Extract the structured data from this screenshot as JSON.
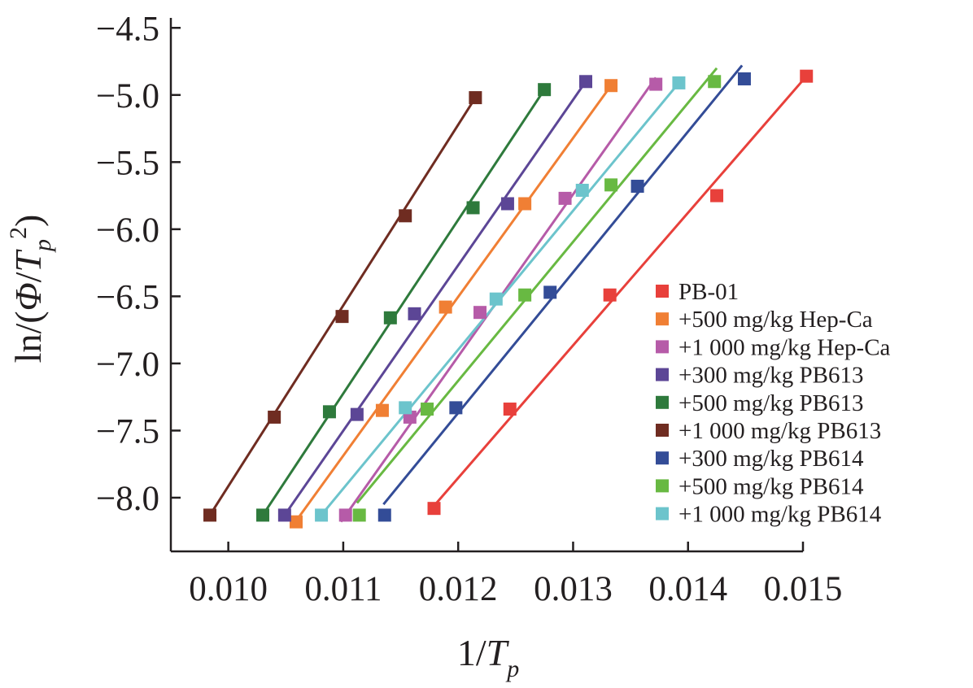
{
  "chart_data": {
    "type": "scatter",
    "title": "",
    "xlabel": {
      "prefix": "1/",
      "var": "T",
      "sub": "p"
    },
    "ylabel": {
      "prefix": "ln/(",
      "phi": "Φ",
      "mid": "/",
      "var": "T",
      "sub": "p",
      "sup": "2",
      "suffix": ")"
    },
    "xlim": [
      0.0095,
      0.015
    ],
    "ylim": [
      -8.4,
      -4.45
    ],
    "xticks": [
      {
        "value": 0.01,
        "label": "0.010"
      },
      {
        "value": 0.011,
        "label": "0.011"
      },
      {
        "value": 0.012,
        "label": "0.012"
      },
      {
        "value": 0.013,
        "label": "0.013"
      },
      {
        "value": 0.014,
        "label": "0.014"
      },
      {
        "value": 0.015,
        "label": "0.015"
      }
    ],
    "yticks": [
      {
        "value": -4.5,
        "label": "−4.5"
      },
      {
        "value": -5.0,
        "label": "−5.0"
      },
      {
        "value": -5.5,
        "label": "−5.5"
      },
      {
        "value": -6.0,
        "label": "−6.0"
      },
      {
        "value": -6.5,
        "label": "−6.5"
      },
      {
        "value": -7.0,
        "label": "−7.0"
      },
      {
        "value": -7.5,
        "label": "−7.5"
      },
      {
        "value": -8.0,
        "label": "−8.0"
      }
    ],
    "grid": false,
    "legend_position": "bottom-right",
    "series": [
      {
        "name": "PB-01",
        "color": "#e8403b",
        "x": [
          0.01179,
          0.01245,
          0.01332,
          0.01425,
          0.01503
        ],
        "y": [
          -8.08,
          -7.34,
          -6.49,
          -5.75,
          -4.86
        ],
        "fit": [
          [
            0.01175,
            -8.1
          ],
          [
            0.01503,
            -4.86
          ]
        ]
      },
      {
        "name": "+500 mg/kg Hep-Ca",
        "color": "#f07f34",
        "x": [
          0.01059,
          0.01134,
          0.01189,
          0.01258,
          0.01333
        ],
        "y": [
          -8.18,
          -7.35,
          -6.58,
          -5.81,
          -4.93
        ],
        "fit": [
          [
            0.01055,
            -8.22
          ],
          [
            0.01333,
            -4.93
          ]
        ]
      },
      {
        "name": "+1 000 mg/kg Hep-Ca",
        "color": "#b65ba8",
        "x": [
          0.01102,
          0.01158,
          0.01219,
          0.01293,
          0.01372
        ],
        "y": [
          -8.13,
          -7.4,
          -6.62,
          -5.77,
          -4.92
        ],
        "fit": [
          [
            0.01098,
            -8.18
          ],
          [
            0.01372,
            -4.87
          ]
        ]
      },
      {
        "name": "+300 mg/kg PB613",
        "color": "#5c4696",
        "x": [
          0.01049,
          0.01112,
          0.01162,
          0.01243,
          0.01311
        ],
        "y": [
          -8.13,
          -7.38,
          -6.63,
          -5.81,
          -4.9
        ],
        "fit": [
          [
            0.01049,
            -8.13
          ],
          [
            0.01311,
            -4.9
          ]
        ]
      },
      {
        "name": "+500 mg/kg PB613",
        "color": "#2e7a3c",
        "x": [
          0.0103,
          0.01088,
          0.01141,
          0.01213,
          0.01275
        ],
        "y": [
          -8.13,
          -7.36,
          -6.66,
          -5.84,
          -4.96
        ],
        "fit": [
          [
            0.0103,
            -8.13
          ],
          [
            0.01275,
            -4.96
          ]
        ]
      },
      {
        "name": "+1 000 mg/kg PB613",
        "color": "#6f2c21",
        "x": [
          0.00984,
          0.0104,
          0.01099,
          0.01154,
          0.01215
        ],
        "y": [
          -8.13,
          -7.4,
          -6.65,
          -5.9,
          -5.02
        ],
        "fit": [
          [
            0.00984,
            -8.13
          ],
          [
            0.01215,
            -5.02
          ]
        ]
      },
      {
        "name": "+300 mg/kg PB614",
        "color": "#334c97",
        "x": [
          0.01136,
          0.01198,
          0.0128,
          0.01356,
          0.01449
        ],
        "y": [
          -8.13,
          -7.33,
          -6.47,
          -5.68,
          -4.88
        ],
        "fit": [
          [
            0.01135,
            -8.05
          ],
          [
            0.01447,
            -4.78
          ]
        ]
      },
      {
        "name": "+500 mg/kg PB614",
        "color": "#68b942",
        "x": [
          0.01114,
          0.01173,
          0.01258,
          0.01333,
          0.01423
        ],
        "y": [
          -8.13,
          -7.34,
          -6.49,
          -5.67,
          -4.9
        ],
        "fit": [
          [
            0.01112,
            -8.04
          ],
          [
            0.01425,
            -4.8
          ]
        ]
      },
      {
        "name": "+1 000 mg/kg PB614",
        "color": "#6cc4cc",
        "x": [
          0.01081,
          0.01154,
          0.01233,
          0.01308,
          0.01392
        ],
        "y": [
          -8.13,
          -7.33,
          -6.52,
          -5.71,
          -4.91
        ],
        "fit": [
          [
            0.01078,
            -8.16
          ],
          [
            0.01392,
            -4.91
          ]
        ]
      }
    ]
  }
}
